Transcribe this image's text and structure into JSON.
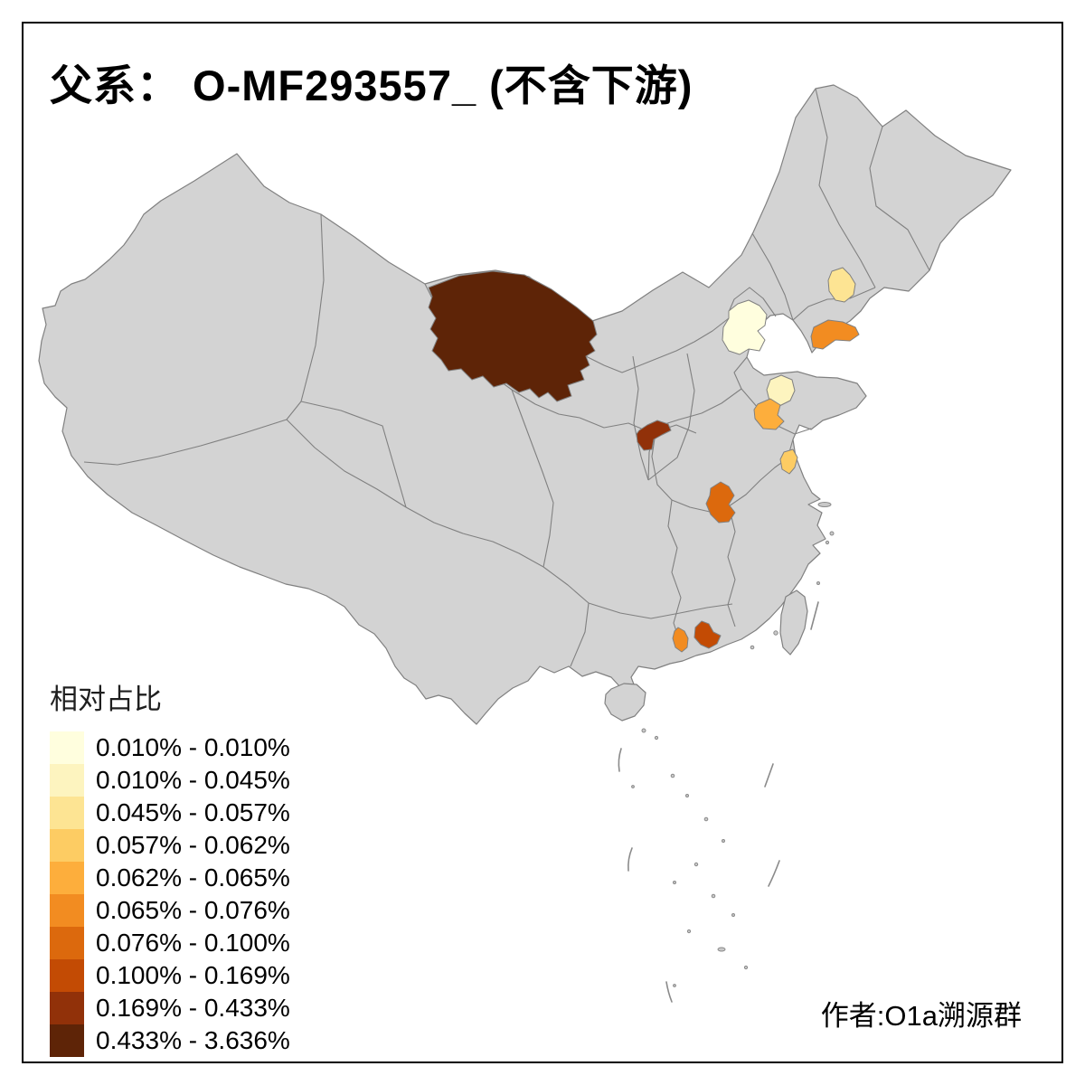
{
  "title": "父系： O-MF293557_ (不含下游)",
  "attribution": "作者:O1a溯源群",
  "legend": {
    "title": "相对占比",
    "entries": [
      {
        "label": "0.010% - 0.010%",
        "color": "#fffede"
      },
      {
        "label": "0.010% - 0.045%",
        "color": "#fdf4bf"
      },
      {
        "label": "0.045% - 0.057%",
        "color": "#fde493"
      },
      {
        "label": "0.057% - 0.062%",
        "color": "#fdcc63"
      },
      {
        "label": "0.062% - 0.065%",
        "color": "#fdae3c"
      },
      {
        "label": "0.065% - 0.076%",
        "color": "#f28c21"
      },
      {
        "label": "0.076% - 0.100%",
        "color": "#dc690d"
      },
      {
        "label": "0.100% - 0.169%",
        "color": "#c34b04"
      },
      {
        "label": "0.169% - 0.433%",
        "color": "#913109"
      },
      {
        "label": "0.433% - 3.636%",
        "color": "#5e2407"
      }
    ]
  },
  "map": {
    "base_fill": "#d3d3d3",
    "boundary_color": "#808080",
    "background": "#ffffff",
    "frame_color": "#000000",
    "regions": {
      "inner-mongolia-west": {
        "color": "#5e2407",
        "range": "0.433% - 3.636%"
      },
      "beijing": {
        "color": "#fffede",
        "range": "0.010% - 0.010%"
      },
      "liaoning-central": {
        "color": "#fde493",
        "range": "0.045% - 0.057%"
      },
      "liaodong-dalian": {
        "color": "#f28c21",
        "range": "0.065% - 0.076%"
      },
      "shandong-north": {
        "color": "#fdf4bf",
        "range": "0.010% - 0.045%"
      },
      "shandong-central": {
        "color": "#fdae3c",
        "range": "0.062% - 0.065%"
      },
      "jiangsu-north": {
        "color": "#fdcc63",
        "range": "0.057% - 0.062%"
      },
      "shaanxi-north": {
        "color": "#913109",
        "range": "0.169% - 0.433%"
      },
      "hubei-north": {
        "color": "#dc690d",
        "range": "0.076% - 0.100%"
      },
      "guangxi-east": {
        "color": "#f28c21",
        "range": "0.065% - 0.076%"
      },
      "guangdong-pearl-west": {
        "color": "#c34b04",
        "range": "0.100% - 0.169%"
      }
    }
  },
  "chart_data": {
    "type": "choropleth-map",
    "title": "父系： O-MF293557_ (不含下游)",
    "legend_title": "相对占比",
    "bins": [
      "0.010% - 0.010%",
      "0.010% - 0.045%",
      "0.045% - 0.057%",
      "0.057% - 0.062%",
      "0.062% - 0.065%",
      "0.065% - 0.076%",
      "0.076% - 0.100%",
      "0.100% - 0.169%",
      "0.169% - 0.433%",
      "0.433% - 3.636%"
    ],
    "highlighted_regions": [
      {
        "key": "inner-mongolia-west",
        "bin": "0.433% - 3.636%"
      },
      {
        "key": "shaanxi-north",
        "bin": "0.169% - 0.433%"
      },
      {
        "key": "guangdong-pearl-west",
        "bin": "0.100% - 0.169%"
      },
      {
        "key": "hubei-north",
        "bin": "0.076% - 0.100%"
      },
      {
        "key": "liaodong-dalian",
        "bin": "0.065% - 0.076%"
      },
      {
        "key": "guangxi-east",
        "bin": "0.065% - 0.076%"
      },
      {
        "key": "shandong-central",
        "bin": "0.062% - 0.065%"
      },
      {
        "key": "jiangsu-north",
        "bin": "0.057% - 0.062%"
      },
      {
        "key": "liaoning-central",
        "bin": "0.045% - 0.057%"
      },
      {
        "key": "shandong-north",
        "bin": "0.010% - 0.045%"
      },
      {
        "key": "beijing",
        "bin": "0.010% - 0.010%"
      }
    ],
    "no_data_fill": "#d3d3d3",
    "legend_position": "bottom-left"
  }
}
